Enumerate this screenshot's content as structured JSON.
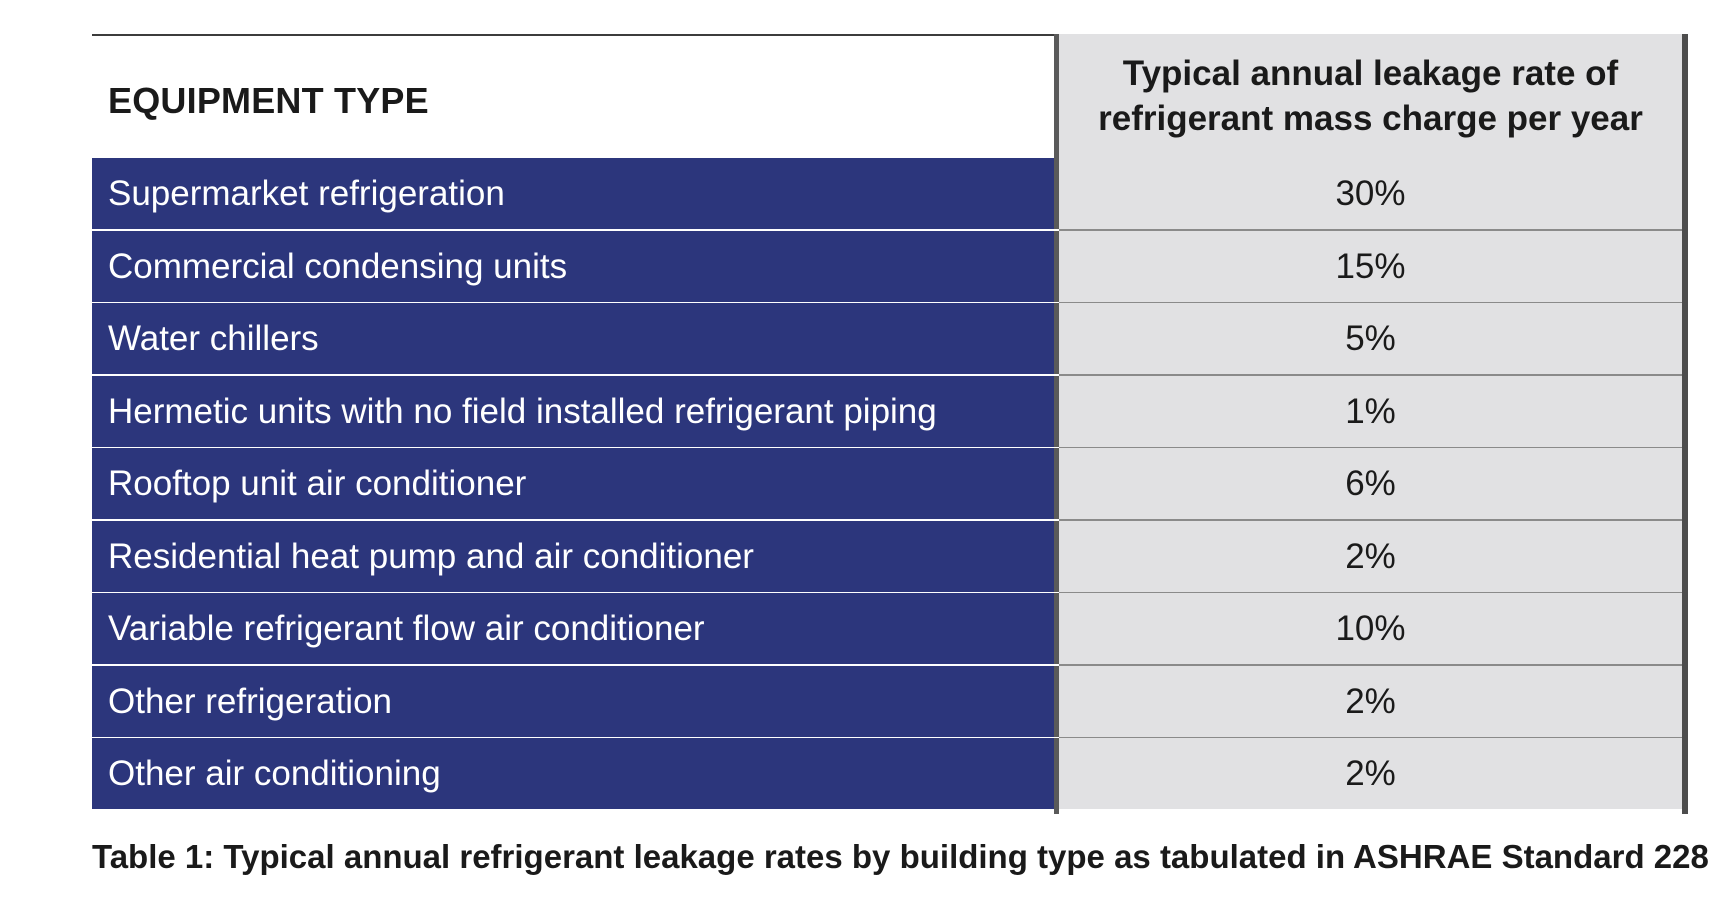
{
  "table": {
    "header": {
      "col1": "EQUIPMENT TYPE",
      "col2_line1": "Typical annual leakage rate of",
      "col2_line2": "refrigerant mass charge per year"
    },
    "rows": [
      {
        "equipment": "Supermarket refrigeration",
        "rate": "30%"
      },
      {
        "equipment": "Commercial condensing units",
        "rate": "15%"
      },
      {
        "equipment": "Water chillers",
        "rate": "5%"
      },
      {
        "equipment": "Hermetic units with no field installed refrigerant piping",
        "rate": "1%"
      },
      {
        "equipment": "Rooftop unit air conditioner",
        "rate": "6%"
      },
      {
        "equipment": "Residential heat pump and air conditioner",
        "rate": "2%"
      },
      {
        "equipment": "Variable refrigerant flow air conditioner",
        "rate": "10%"
      },
      {
        "equipment": "Other refrigeration",
        "rate": "2%"
      },
      {
        "equipment": "Other air conditioning",
        "rate": "2%"
      }
    ]
  },
  "caption": "Table 1: Typical annual refrigerant leakage rates by building type as tabulated in ASHRAE Standard 228",
  "colors": {
    "label_column_bg": "#2c367c",
    "value_column_bg": "#e1e1e3"
  }
}
